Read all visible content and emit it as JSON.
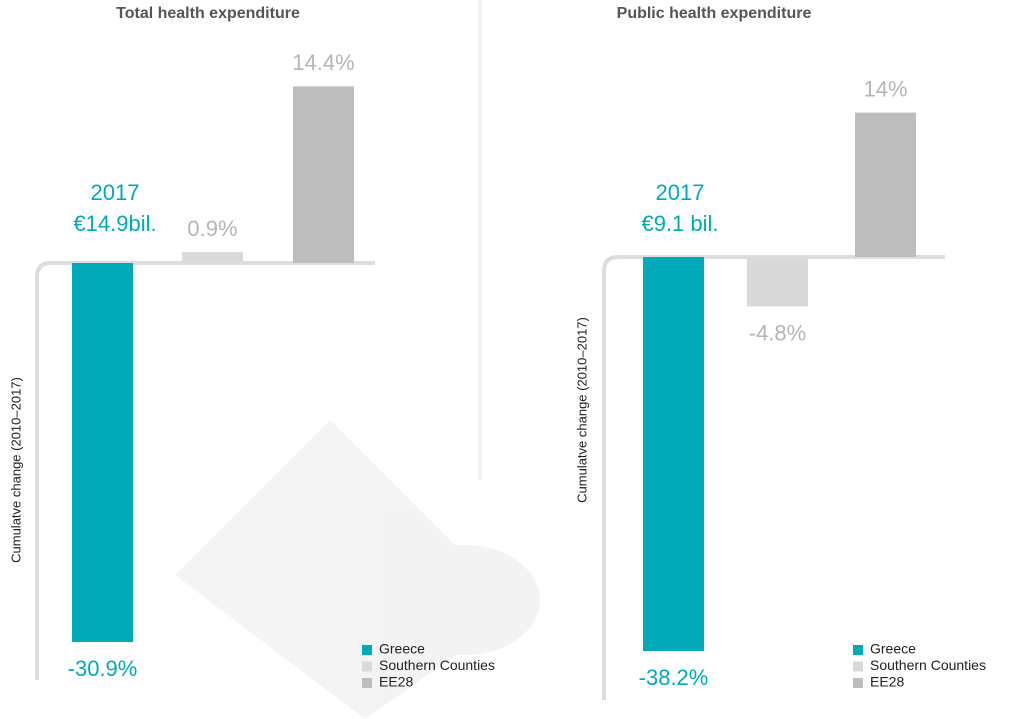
{
  "chart_data": [
    {
      "type": "bar",
      "title": "Total health expenditure",
      "y_label": "Cumulatve change (2010–2017)",
      "annotation": [
        "2017",
        "€14.9bil."
      ],
      "series": [
        {
          "name": "Greece",
          "color": "#00aab9",
          "values": [
            -30.9
          ],
          "value_labels": [
            "-30.9%"
          ]
        },
        {
          "name": "Southern Counties",
          "color": "#d9d9d9",
          "values": [
            0.9
          ],
          "value_labels": [
            "0.9%"
          ]
        },
        {
          "name": "EE28",
          "color": "#bdbdbd",
          "values": [
            14.4
          ],
          "value_labels": [
            "14.4%"
          ]
        }
      ]
    },
    {
      "type": "bar",
      "title": "Public health expenditure",
      "y_label": "Cumulatve change (2010–2017)",
      "annotation": [
        "2017",
        "€9.1 bil."
      ],
      "series": [
        {
          "name": "Greece",
          "color": "#00aab9",
          "values": [
            -38.2
          ],
          "value_labels": [
            "-38.2%"
          ]
        },
        {
          "name": "Southern Counties",
          "color": "#d9d9d9",
          "values": [
            -4.8
          ],
          "value_labels": [
            "-4.8%"
          ]
        },
        {
          "name": "EE28",
          "color": "#bdbdbd",
          "values": [
            14
          ],
          "value_labels": [
            "14%"
          ]
        }
      ]
    }
  ]
}
